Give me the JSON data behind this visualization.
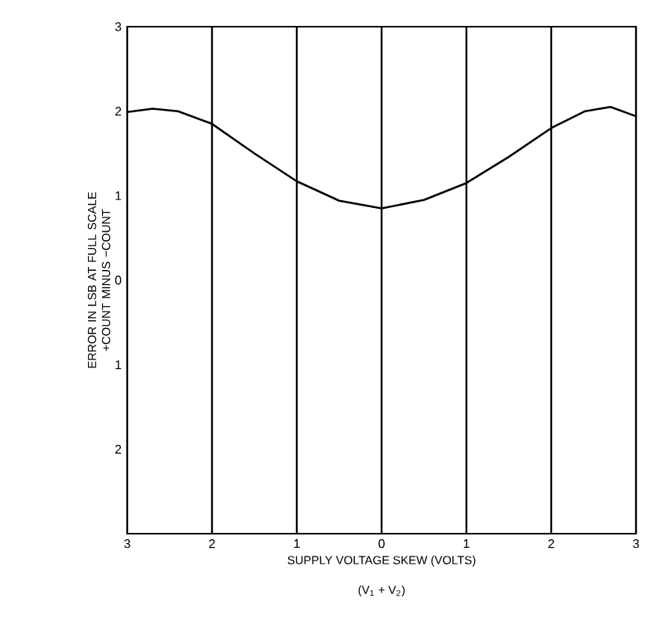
{
  "chart_data": {
    "type": "line",
    "xlabel": "SUPPLY VOLTAGE SKEW (VOLTS)",
    "ylabel": "ERROR IN LSB AT FULL SCALE +COUNT MINUS −COUNT",
    "annotations": [
      "(V$_{1}$ + V$_{2}$)"
    ],
    "x": [
      -3,
      -2.7,
      -2.4,
      -2,
      -1.5,
      -1,
      -0.5,
      0,
      0.5,
      1,
      1.5,
      2,
      2.4,
      2.7,
      3
    ],
    "series": [
      {
        "color": "#000000",
        "values": [
          1.99,
          2.03,
          2.0,
          1.85,
          1.5,
          1.17,
          0.94,
          0.85,
          0.95,
          1.15,
          1.46,
          1.8,
          2.0,
          2.05,
          1.94
        ]
      }
    ],
    "xlim": [
      -3,
      3
    ],
    "ylim": [
      -3,
      3
    ],
    "xticks": [
      {
        "value": -3,
        "label": "3"
      },
      {
        "value": -2,
        "label": "2"
      },
      {
        "value": -1,
        "label": "1"
      },
      0,
      1,
      2,
      3
    ],
    "yticks": [
      {
        "value": -3,
        "label": null
      },
      {
        "value": -2,
        "label": "2"
      },
      {
        "value": -1,
        "label": "1"
      },
      0,
      1,
      2,
      3
    ],
    "grid": "x",
    "line_style": "solid",
    "marker": "none"
  }
}
